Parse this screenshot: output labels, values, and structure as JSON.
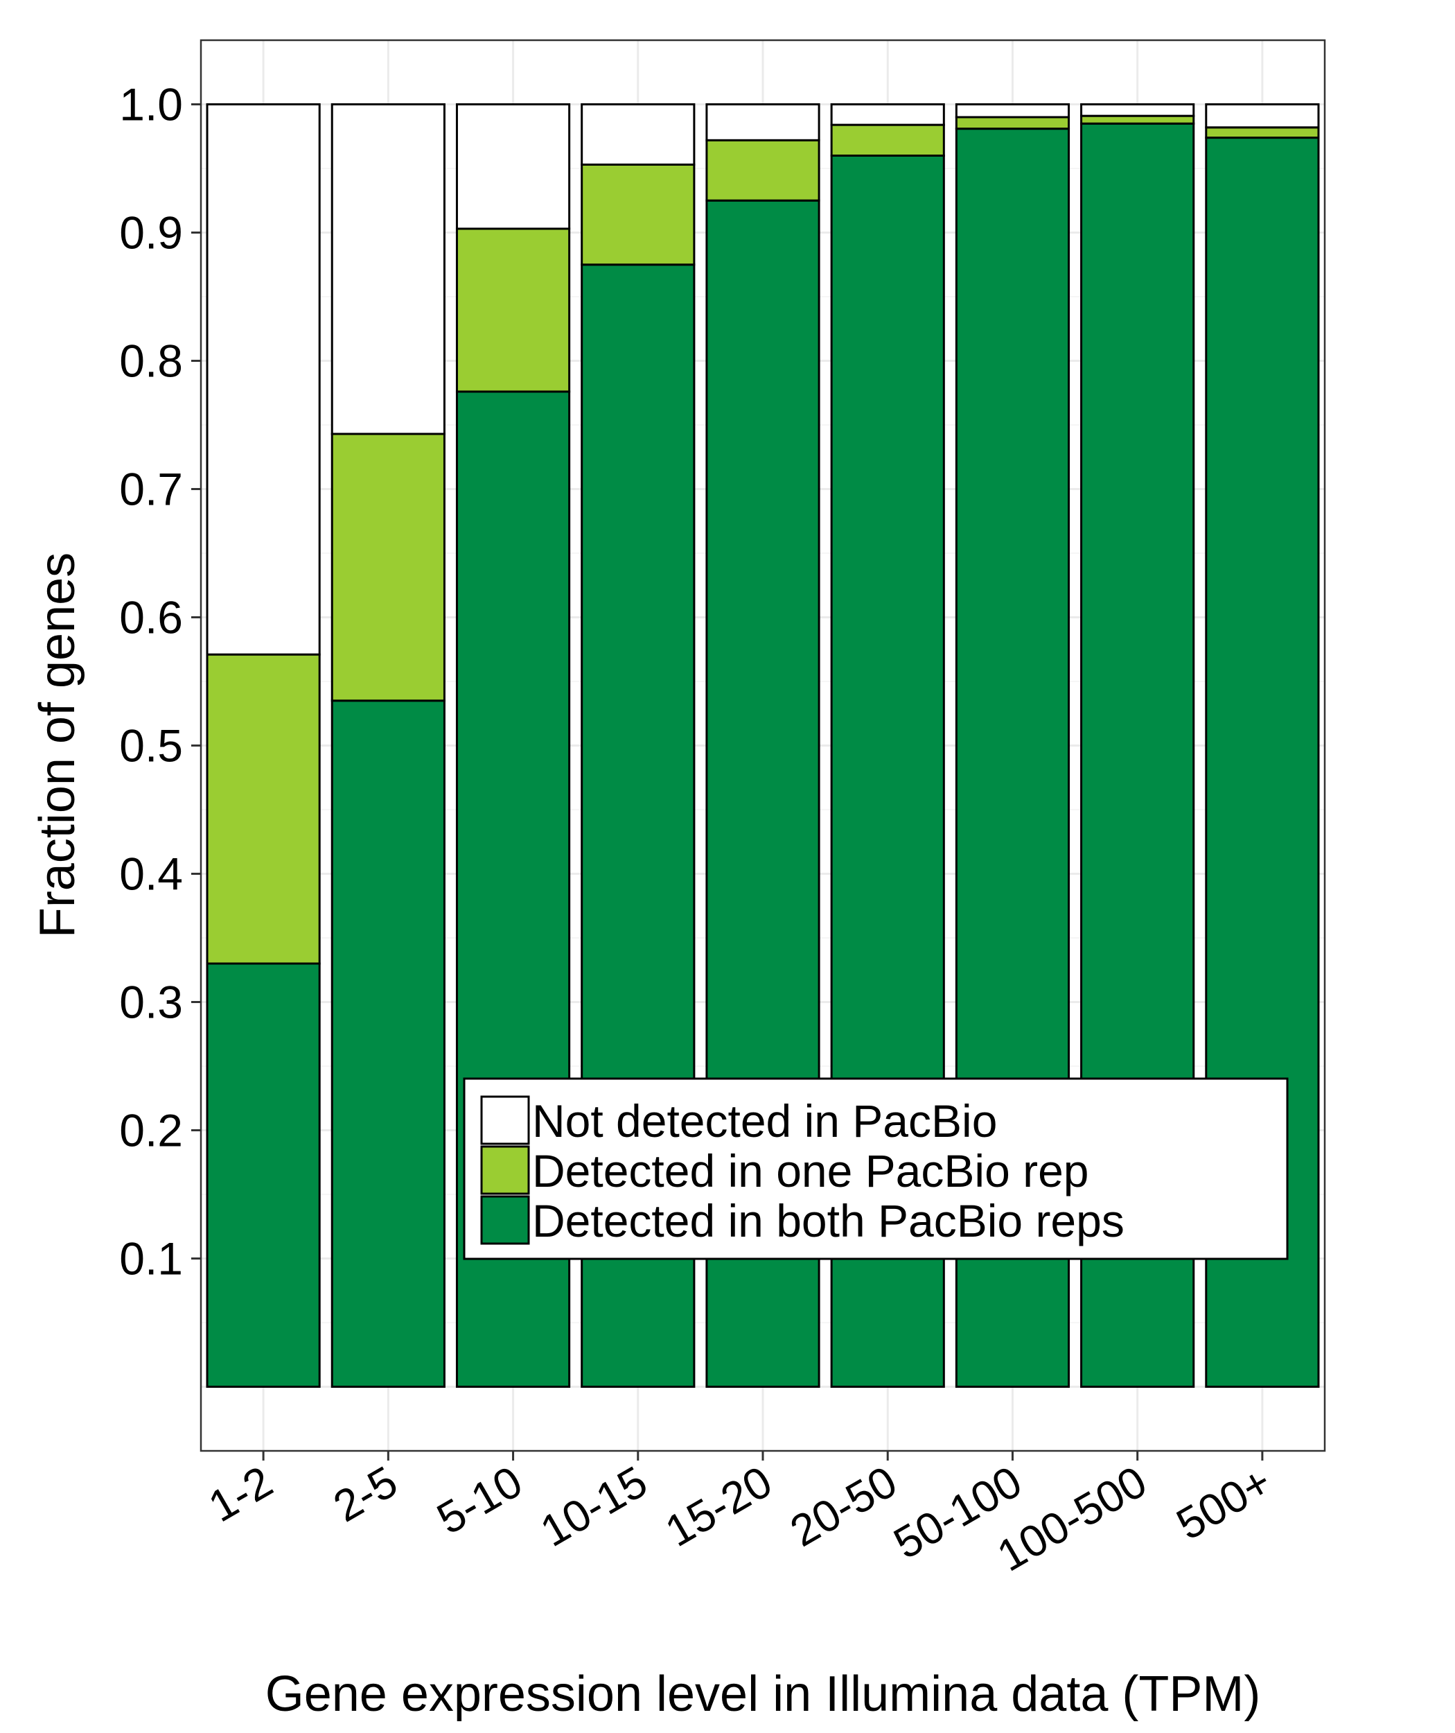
{
  "chart_data": {
    "type": "bar",
    "stacked": true,
    "xlabel": "Gene expression level in Illumina data (TPM)",
    "ylabel": "Fraction of genes",
    "ylim": [
      -0.05,
      1.05
    ],
    "yticks": [
      "0.1",
      "0.2",
      "0.3",
      "0.4",
      "0.5",
      "0.6",
      "0.7",
      "0.8",
      "0.9",
      "1.0"
    ],
    "categories": [
      "1-2",
      "2-5",
      "5-10",
      "10-15",
      "15-20",
      "20-50",
      "50-100",
      "100-500",
      "500+"
    ],
    "series": [
      {
        "name": "Detected in both PacBio reps",
        "color": "#008B45",
        "values": [
          0.33,
          0.535,
          0.776,
          0.875,
          0.925,
          0.96,
          0.981,
          0.985,
          0.974
        ]
      },
      {
        "name": "Detected in one PacBio rep",
        "color": "#9ACD32",
        "values": [
          0.241,
          0.208,
          0.127,
          0.078,
          0.047,
          0.024,
          0.009,
          0.006,
          0.008
        ]
      },
      {
        "name": "Not detected in PacBio",
        "color": "#FFFFFF",
        "values": [
          0.429,
          0.257,
          0.097,
          0.047,
          0.028,
          0.016,
          0.01,
          0.009,
          0.018
        ]
      }
    ],
    "legend": {
      "position": "bottom-right inside",
      "items": [
        "Not detected in PacBio",
        "Detected in one PacBio rep",
        "Detected in both PacBio reps"
      ]
    },
    "grid": true
  }
}
